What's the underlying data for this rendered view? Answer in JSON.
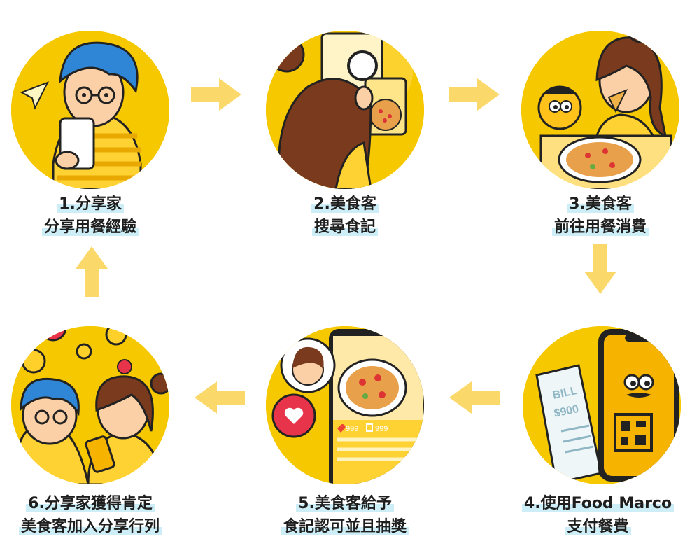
{
  "steps": [
    {
      "line1": "1.分享家",
      "line2": "分享用餐經驗"
    },
    {
      "line1": "2.美食客",
      "line2": "搜尋食記"
    },
    {
      "line1": "3.美食客",
      "line2": "前往用餐消費"
    },
    {
      "line1": "4.使用Food Marco",
      "line2": "支付餐費"
    },
    {
      "line1": "5.美食客給予",
      "line2": "食記認可並且抽獎"
    },
    {
      "line1": "6.分享家獲得肯定",
      "line2": "美食客加入分享行列"
    }
  ],
  "receipt": {
    "title": "BILL",
    "amount": "$900"
  },
  "post": {
    "likes": "999",
    "saves": "999"
  },
  "colors": {
    "yellow": "#f6c800",
    "arrow": "#fbd86a",
    "highlight": "#cdeef6",
    "blue_hair": "#2f86d6",
    "brown_hair": "#7a3a1e"
  }
}
